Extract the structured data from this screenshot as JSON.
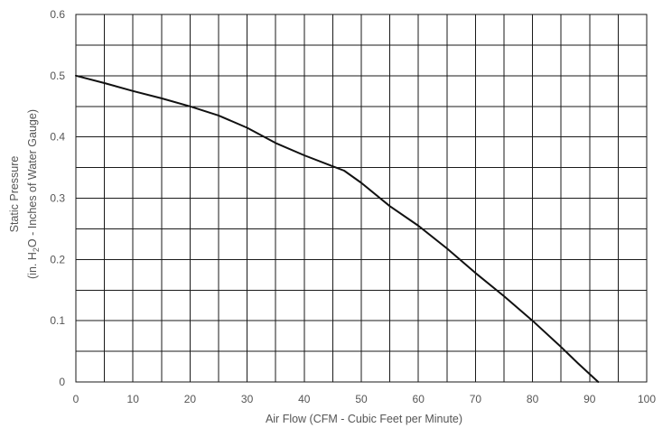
{
  "chart_data": {
    "type": "line",
    "xlabel": "Air Flow (CFM - Cubic Feet per Minute)",
    "ylabel": {
      "line1": "Static Pressure",
      "line2_prefix": "(in. H",
      "line2_sub": "2",
      "line2_suffix": "O - Inches of Water Gauge)"
    },
    "xlim": [
      0,
      100
    ],
    "ylim": [
      0,
      0.6
    ],
    "x_ticks": [
      0,
      10,
      20,
      30,
      40,
      50,
      60,
      70,
      80,
      90,
      100
    ],
    "x_tick_labels": [
      "0",
      "10",
      "20",
      "30",
      "40",
      "50",
      "60",
      "70",
      "80",
      "90",
      "100"
    ],
    "y_ticks": [
      0,
      0.1,
      0.2,
      0.3,
      0.4,
      0.5,
      0.6
    ],
    "y_tick_labels": [
      "0",
      "0.1",
      "0.2",
      "0.3",
      "0.4",
      "0.5",
      "0.6"
    ],
    "x_grid_step": 5,
    "y_grid_step": 0.05,
    "grid": true,
    "line_color": "#111111",
    "grid_color": "#1a1a1a",
    "label_color": "#555555",
    "series": [
      {
        "x": [
          0,
          5,
          10,
          15,
          20,
          25,
          30,
          35,
          40,
          45,
          47,
          50,
          55,
          60,
          65,
          70,
          75,
          80,
          85,
          88,
          91.5
        ],
        "y": [
          0.5,
          0.488,
          0.475,
          0.463,
          0.45,
          0.435,
          0.415,
          0.39,
          0.37,
          0.352,
          0.345,
          0.325,
          0.287,
          0.255,
          0.218,
          0.178,
          0.14,
          0.1,
          0.057,
          0.03,
          0.0
        ]
      }
    ]
  }
}
